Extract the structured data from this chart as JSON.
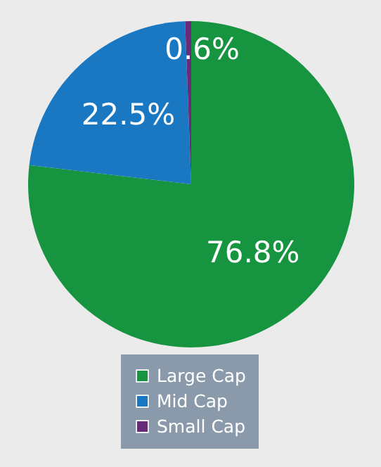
{
  "chart_data": {
    "type": "pie",
    "categories": [
      "Large Cap",
      "Mid Cap",
      "Small Cap"
    ],
    "values": [
      76.8,
      22.5,
      0.6
    ],
    "value_labels": [
      "76.8%",
      "22.5%",
      "0.6%"
    ],
    "colors": [
      "#17943f",
      "#1a78c2",
      "#6a2a7a"
    ],
    "legend": "bottom"
  }
}
